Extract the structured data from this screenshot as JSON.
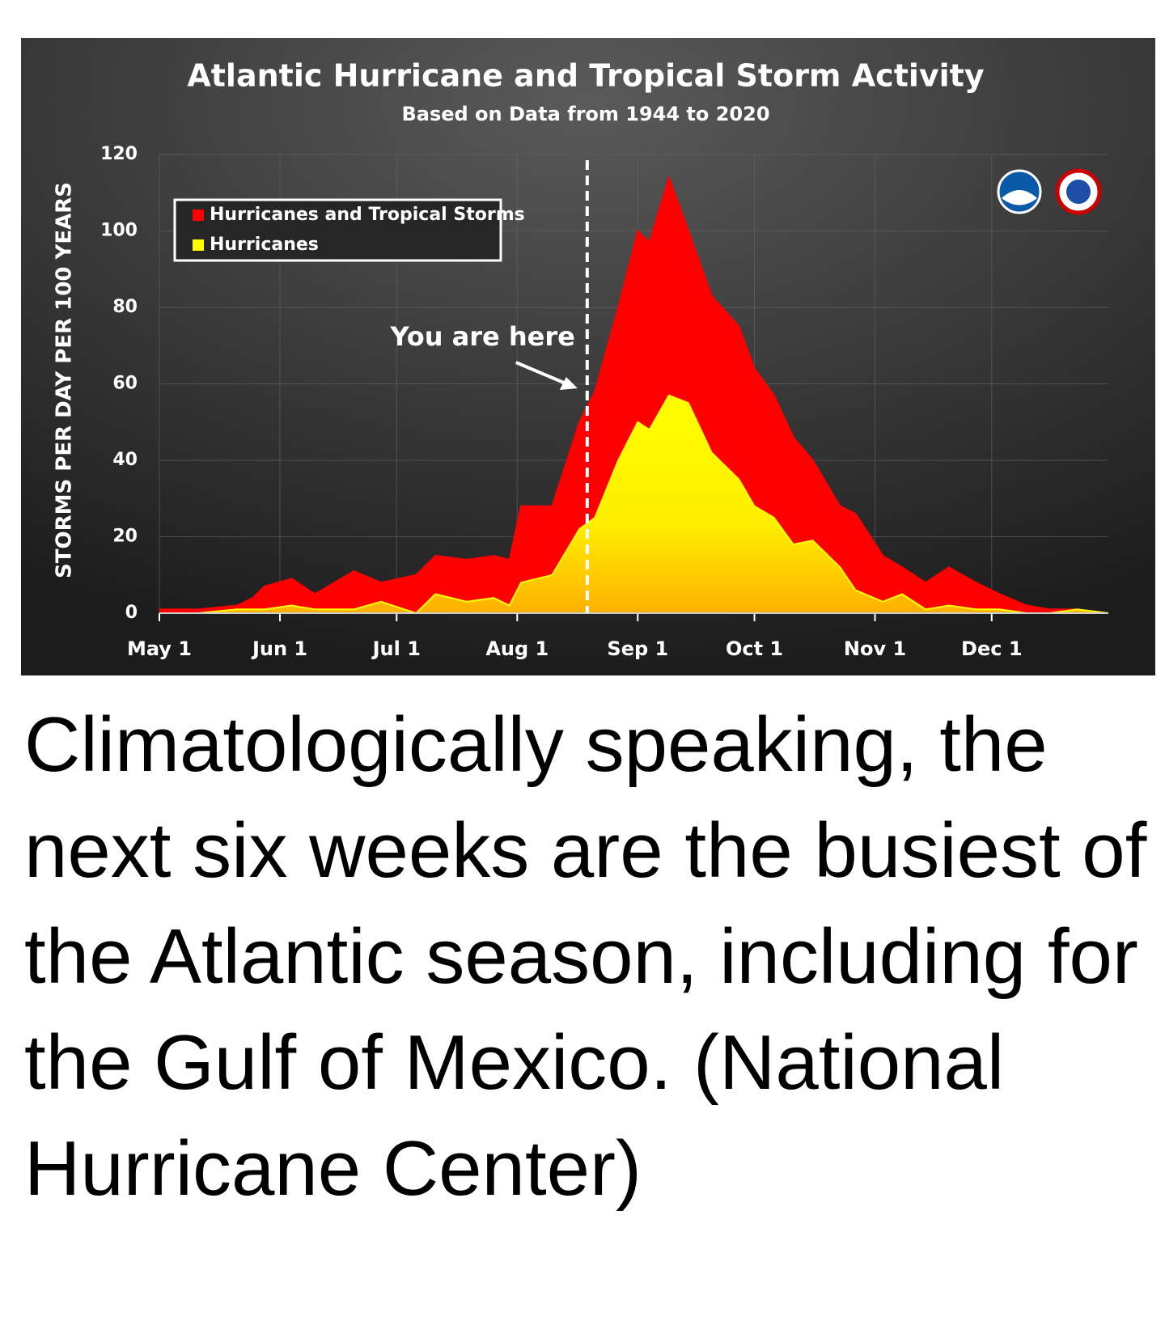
{
  "chart_data": {
    "type": "area",
    "title": "Atlantic Hurricane and Tropical Storm Activity",
    "subtitle": "Based on Data from 1944 to 2020",
    "y_label": "STORMS PER DAY PER 100 YEARS",
    "x": [
      0,
      10,
      20,
      24,
      27,
      34,
      40,
      50,
      57,
      66,
      71,
      79,
      86,
      90,
      93,
      101,
      108,
      112,
      118,
      123,
      126,
      131,
      136,
      142,
      149,
      153,
      158,
      163,
      168,
      175,
      179,
      186,
      191,
      197,
      203,
      210,
      216,
      223,
      229,
      236,
      244
    ],
    "series": [
      {
        "name": "Hurricanes and Tropical Storms",
        "color": "#ff0000",
        "values": [
          1,
          1,
          2,
          4,
          7,
          9,
          5,
          11,
          8,
          10,
          15,
          14,
          15,
          14,
          28,
          28,
          50,
          58,
          80,
          100,
          97,
          114,
          100,
          83,
          75,
          64,
          57,
          46,
          40,
          28,
          26,
          15,
          12,
          8,
          12,
          8,
          5,
          2,
          1,
          1,
          0
        ]
      },
      {
        "name": "Hurricanes",
        "color": "#ffff00",
        "values": [
          0,
          0,
          1,
          1,
          1,
          2,
          1,
          1,
          3,
          0,
          5,
          3,
          4,
          2,
          8,
          10,
          22,
          25,
          40,
          50,
          48,
          57,
          55,
          42,
          35,
          28,
          25,
          18,
          19,
          12,
          6,
          3,
          5,
          1,
          2,
          1,
          1,
          0,
          0,
          1,
          0
        ]
      }
    ],
    "xlim": [
      0,
      244
    ],
    "xticks": [
      {
        "value": 0,
        "label": "May 1"
      },
      {
        "value": 31,
        "label": "Jun 1"
      },
      {
        "value": 61,
        "label": "Jul 1"
      },
      {
        "value": 92,
        "label": "Aug 1"
      },
      {
        "value": 123,
        "label": "Sep 1"
      },
      {
        "value": 153,
        "label": "Oct 1"
      },
      {
        "value": 184,
        "label": "Nov 1"
      },
      {
        "value": 214,
        "label": "Dec 1"
      }
    ],
    "ylim": [
      0,
      120
    ],
    "yticks": [
      0,
      20,
      40,
      60,
      80,
      100,
      120
    ],
    "grid": true,
    "legend": "upper left",
    "annotation": {
      "text": "You are here",
      "x": 110
    }
  },
  "caption": "Climatologically speaking, the next six weeks are the busiest of the Atlantic season, including for the Gulf of Mexico. (National Hurricane Center)"
}
